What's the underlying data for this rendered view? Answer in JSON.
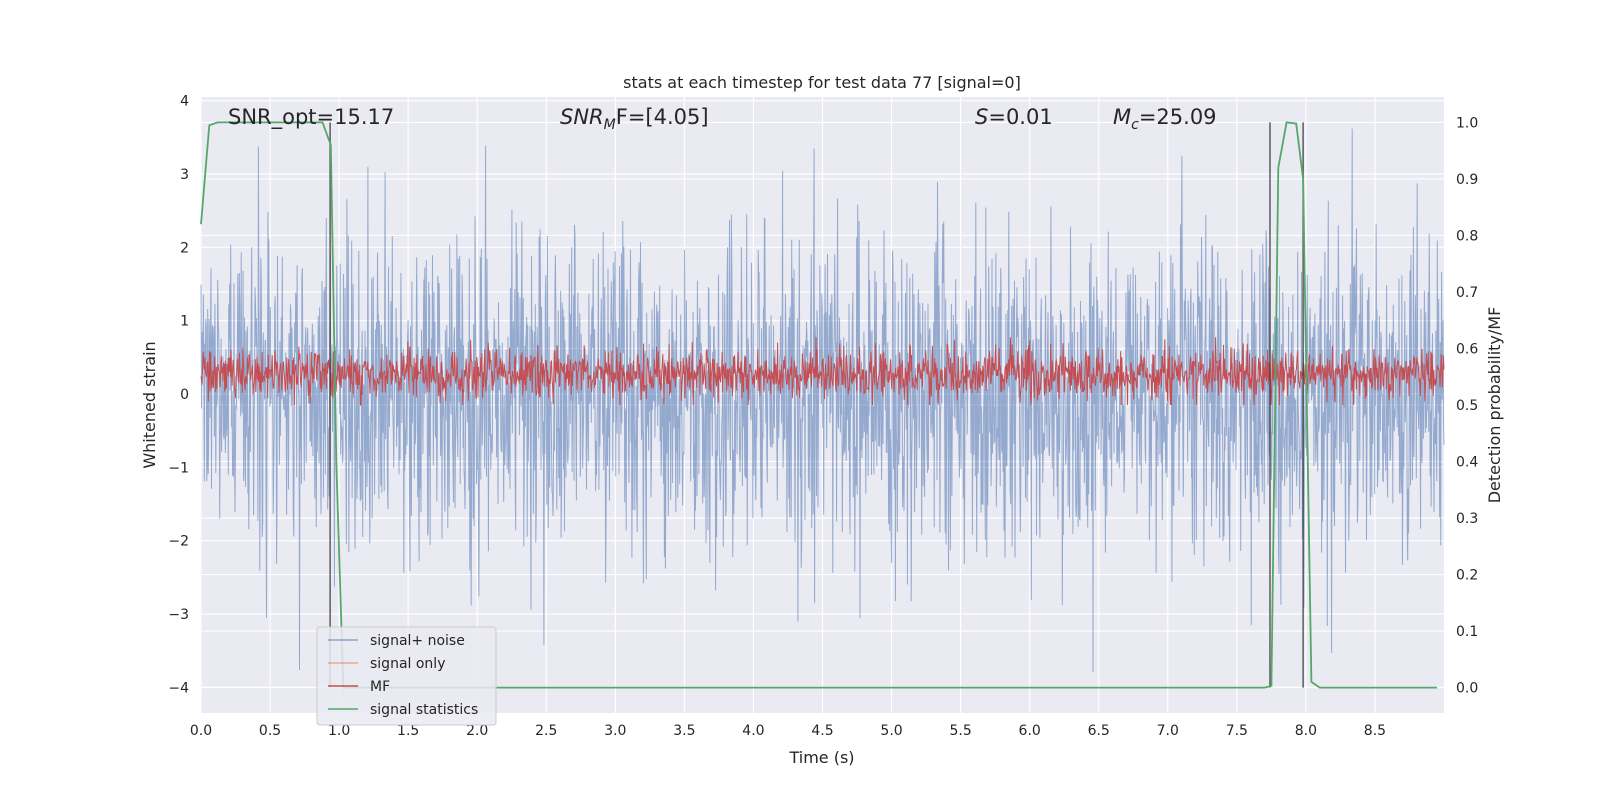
{
  "chart_data": {
    "type": "line",
    "title": "stats at each timestep for test data 77 [signal=0]",
    "xlabel": "Time (s)",
    "ylabel": "Whitened strain",
    "y2label": "Detection probability/MF",
    "xlim": [
      0,
      9
    ],
    "ylim": [
      -4.35,
      4.05
    ],
    "y2lim": [
      -0.045,
      1.045
    ],
    "xticks": [
      "0.0",
      "0.5",
      "1.0",
      "1.5",
      "2.0",
      "2.5",
      "3.0",
      "3.5",
      "4.0",
      "4.5",
      "5.0",
      "5.5",
      "6.0",
      "6.5",
      "7.0",
      "7.5",
      "8.0",
      "8.5"
    ],
    "yticks": [
      "−4",
      "−3",
      "−2",
      "−1",
      "0",
      "1",
      "2",
      "3",
      "4"
    ],
    "y2ticks": [
      "0.0",
      "0.1",
      "0.2",
      "0.3",
      "0.4",
      "0.5",
      "0.6",
      "0.7",
      "0.8",
      "0.9",
      "1.0"
    ],
    "grid": true,
    "legend_position": "lower-left",
    "annotations": {
      "snr_opt": "SNR_opt=15.17",
      "snr_mf_main": "SNR",
      "snr_mf_sub": "M",
      "snr_mf_rest": "F=[4.05]",
      "s_var": "S",
      "s_rest": "=0.01",
      "mc_var": "M",
      "mc_sub": "c",
      "mc_rest": "=25.09"
    },
    "series": [
      {
        "name": "signal+ noise",
        "color": "#4c72b0",
        "opacity": 0.5,
        "axis": "left",
        "description": "whitened noise, roughly ±1.5 with spikes to about ±3.8"
      },
      {
        "name": "signal only",
        "color": "#dd8452",
        "opacity": 0.5,
        "axis": "left",
        "values": []
      },
      {
        "name": "MF",
        "color": "#c44e52",
        "axis": "right",
        "description": "matched filter output, roughly 0.50–0.62"
      },
      {
        "name": "signal statistics",
        "color": "#55a868",
        "axis": "right",
        "x": [
          0.0,
          0.06,
          0.12,
          0.3,
          0.6,
          0.88,
          0.94,
          0.98,
          1.03,
          1.08,
          7.7,
          7.75,
          7.8,
          7.86,
          7.93,
          7.98,
          8.04,
          8.1,
          8.95
        ],
        "values": [
          0.82,
          0.995,
          1.0,
          1.0,
          1.0,
          1.0,
          0.96,
          0.4,
          0.0,
          0.0,
          0.0,
          0.003,
          0.92,
          1.0,
          0.998,
          0.9,
          0.01,
          0.0,
          0.0
        ]
      }
    ],
    "vertical_lines": [
      0.935,
      7.74,
      7.98
    ]
  }
}
